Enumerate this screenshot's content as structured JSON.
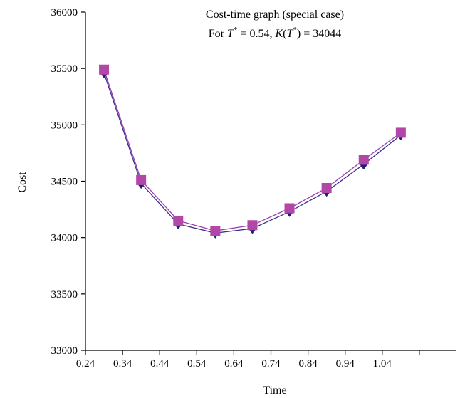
{
  "chart_data": {
    "type": "line",
    "title": "Cost-time graph (special case)",
    "subtitle_parts": {
      "prefix": "For ",
      "t_symbol": "T",
      "star": "*",
      "eq1": " = 0.54, ",
      "k_symbol": "K",
      "paren_open": "(",
      "t_symbol_2": "T",
      "star_2": "*",
      "paren_close": ")",
      "eq2": " = 34044"
    },
    "xlabel": "Time",
    "ylabel": "Cost",
    "xlim": [
      0.24,
      1.24
    ],
    "ylim": [
      33000,
      36000
    ],
    "x_ticks": [
      "0.24",
      "0.34",
      "0.44",
      "0.54",
      "0.64",
      "0.74",
      "0.84",
      "0.94",
      "1.04"
    ],
    "y_ticks": [
      "33000",
      "33500",
      "34000",
      "34500",
      "35000",
      "35500",
      "36000"
    ],
    "x": [
      0.29,
      0.39,
      0.49,
      0.59,
      0.69,
      0.79,
      0.89,
      0.99,
      1.09
    ],
    "series": [
      {
        "marker": "diamond",
        "color": "#1f1f7a",
        "values": [
          35460,
          34480,
          34120,
          34040,
          34080,
          34230,
          34410,
          34650,
          34910
        ]
      },
      {
        "marker": "square",
        "color": "#b347a8",
        "values": [
          35490,
          34510,
          34150,
          34060,
          34110,
          34260,
          34440,
          34690,
          34930
        ]
      }
    ],
    "grid": false,
    "legend": "none"
  }
}
